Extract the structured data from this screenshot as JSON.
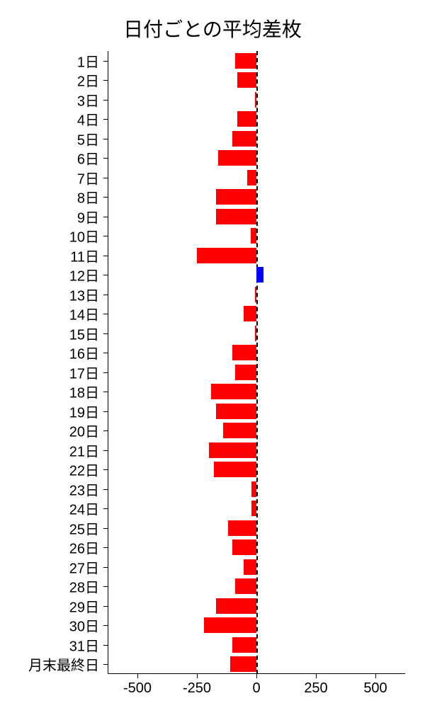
{
  "chart": {
    "type": "bar-horizontal",
    "title": "日付ごとの平均差枚",
    "title_fontsize": 28,
    "background_color": "#ffffff",
    "text_color": "#000000",
    "positive_color": "#0000ff",
    "negative_color": "#ff0000",
    "zero_line_color": "#000000",
    "zero_line_style": "dashed",
    "xlim": [
      -625,
      625
    ],
    "xticks": [
      -500,
      -250,
      0,
      250,
      500
    ],
    "xtick_labels": [
      "-500",
      "-250",
      "0",
      "250",
      "500"
    ],
    "bar_height_ratio": 0.8,
    "categories": [
      "1日",
      "2日",
      "3日",
      "4日",
      "5日",
      "6日",
      "7日",
      "8日",
      "9日",
      "10日",
      "11日",
      "12日",
      "13日",
      "14日",
      "15日",
      "16日",
      "17日",
      "18日",
      "19日",
      "20日",
      "21日",
      "22日",
      "23日",
      "24日",
      "25日",
      "26日",
      "27日",
      "28日",
      "29日",
      "30日",
      "31日",
      "月末最終日"
    ],
    "values": [
      -90,
      -80,
      -5,
      -80,
      -100,
      -160,
      -40,
      -170,
      -170,
      -25,
      -250,
      30,
      -5,
      -55,
      -5,
      -100,
      -90,
      -190,
      -170,
      -140,
      -200,
      -180,
      -20,
      -20,
      -120,
      -100,
      -55,
      -90,
      -170,
      -220,
      -100,
      -110
    ],
    "label_fontsize": 20,
    "tick_fontsize": 20
  }
}
